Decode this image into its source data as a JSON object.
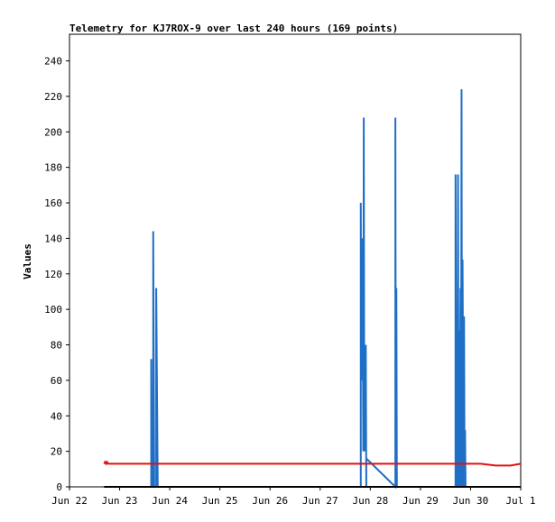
{
  "chart_data": {
    "type": "line",
    "title": "Telemetry for KJ7ROX-9 over last 240 hours (169 points)",
    "xlabel": "",
    "ylabel": "Values",
    "x_axis": {
      "type": "time",
      "start": "Jun 22",
      "end": "Jul 1",
      "range_days": [
        0,
        9
      ],
      "tick_labels": [
        "Jun 22",
        "Jun 23",
        "Jun 24",
        "Jun 25",
        "Jun 26",
        "Jun 27",
        "Jun 28",
        "Jun 29",
        "Jun 30",
        "Jul 1"
      ]
    },
    "y_axis": {
      "range": [
        0,
        255
      ],
      "tick_values": [
        0,
        20,
        40,
        60,
        80,
        100,
        120,
        140,
        160,
        180,
        200,
        220,
        240
      ]
    },
    "grid": false,
    "legend": null,
    "colors": {
      "series_blue": "#1f6fc6",
      "series_red": "#e01010",
      "series_black": "#000000"
    },
    "series": [
      {
        "color": "#1f6fc6",
        "points": [
          [
            0.7,
            0
          ],
          [
            1.63,
            0
          ],
          [
            1.63,
            72
          ],
          [
            1.64,
            0
          ],
          [
            1.67,
            0
          ],
          [
            1.67,
            144
          ],
          [
            1.69,
            0
          ],
          [
            1.73,
            0
          ],
          [
            1.73,
            112
          ],
          [
            1.76,
            0
          ],
          [
            5.81,
            0
          ],
          [
            5.81,
            160
          ],
          [
            5.82,
            60
          ],
          [
            5.83,
            140
          ],
          [
            5.84,
            100
          ],
          [
            5.85,
            104
          ],
          [
            5.86,
            20
          ],
          [
            5.87,
            208
          ],
          [
            5.88,
            20
          ],
          [
            5.89,
            48
          ],
          [
            5.91,
            80
          ],
          [
            5.92,
            0
          ],
          [
            5.92,
            16
          ],
          [
            6.5,
            0
          ],
          [
            6.5,
            208
          ],
          [
            6.51,
            0
          ],
          [
            6.52,
            112
          ],
          [
            6.53,
            0
          ],
          [
            7.7,
            0
          ],
          [
            7.7,
            176
          ],
          [
            7.72,
            0
          ],
          [
            7.73,
            72
          ],
          [
            7.74,
            0
          ],
          [
            7.75,
            176
          ],
          [
            7.76,
            0
          ],
          [
            7.77,
            88
          ],
          [
            7.78,
            0
          ],
          [
            7.8,
            112
          ],
          [
            7.81,
            0
          ],
          [
            7.82,
            224
          ],
          [
            7.83,
            0
          ],
          [
            7.84,
            128
          ],
          [
            7.86,
            0
          ],
          [
            7.87,
            96
          ],
          [
            7.88,
            0
          ],
          [
            7.89,
            32
          ],
          [
            7.9,
            0
          ],
          [
            8.0,
            0
          ]
        ]
      },
      {
        "color": "#e01010",
        "points": [
          [
            0.69,
            13
          ],
          [
            0.71,
            14
          ],
          [
            0.73,
            13
          ],
          [
            0.75,
            14
          ],
          [
            0.77,
            13
          ],
          [
            1.5,
            13
          ],
          [
            3.0,
            13
          ],
          [
            4.5,
            13
          ],
          [
            6.0,
            13
          ],
          [
            7.0,
            13
          ],
          [
            7.6,
            13
          ],
          [
            7.92,
            13
          ],
          [
            8.0,
            13
          ],
          [
            8.2,
            13
          ],
          [
            8.5,
            12
          ],
          [
            8.8,
            12
          ],
          [
            9.0,
            13
          ]
        ]
      },
      {
        "color": "#000000",
        "points": [
          [
            0.69,
            0
          ],
          [
            9.0,
            0
          ]
        ]
      }
    ]
  }
}
